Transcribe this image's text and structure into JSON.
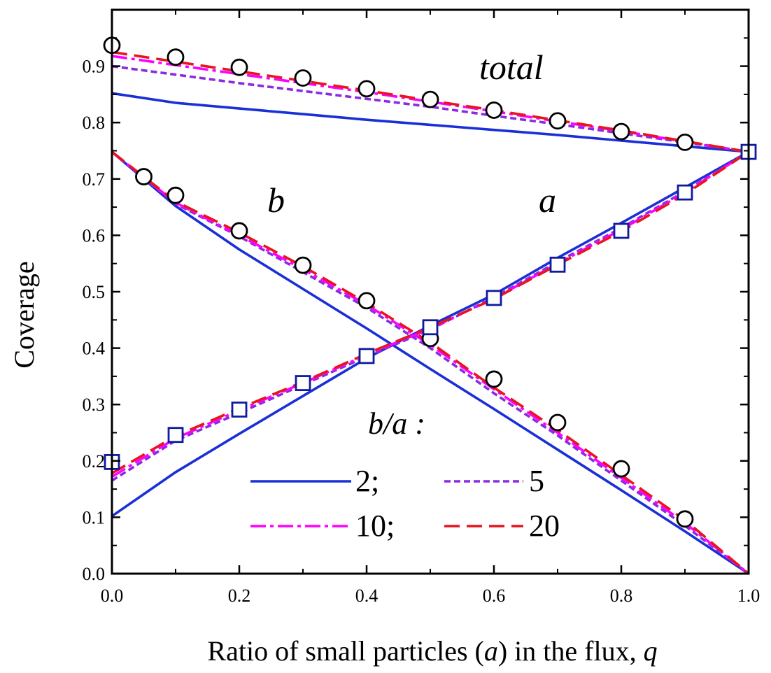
{
  "chart_data": {
    "type": "line",
    "xlabel": "Ratio of  small particles (a) in the flux, q",
    "xlabel_parts": [
      "Ratio of  small particles (",
      "a",
      ") in the flux, ",
      "q"
    ],
    "ylabel": "Coverage",
    "xlim": [
      0.0,
      1.0
    ],
    "ylim": [
      0.0,
      1.0
    ],
    "xticks": [
      "0.0",
      "0.2",
      "0.4",
      "0.6",
      "0.8",
      "1.0"
    ],
    "yticks": [
      "0.0",
      "0.1",
      "0.2",
      "0.3",
      "0.4",
      "0.5",
      "0.6",
      "0.7",
      "0.8",
      "0.9"
    ],
    "annotations": {
      "total": "total",
      "b": "b",
      "a": "a"
    },
    "legend": {
      "title": "b/a :",
      "placement": "bottom-center"
    },
    "series": [
      {
        "name": "2;",
        "color": "#1a2fd6",
        "dash": "solid",
        "group": "total",
        "x": [
          0,
          0.1,
          0.2,
          0.3,
          0.4,
          0.5,
          0.6,
          0.7,
          0.8,
          0.9,
          1.0
        ],
        "y": [
          0.852,
          0.835,
          0.825,
          0.815,
          0.805,
          0.796,
          0.787,
          0.778,
          0.768,
          0.758,
          0.748
        ]
      },
      {
        "name": "5",
        "color": "#8a2be2",
        "dash": "short-dash",
        "group": "total",
        "x": [
          0,
          0.1,
          0.2,
          0.3,
          0.4,
          0.5,
          0.6,
          0.7,
          0.8,
          0.9,
          1.0
        ],
        "y": [
          0.9,
          0.885,
          0.87,
          0.856,
          0.842,
          0.828,
          0.812,
          0.797,
          0.781,
          0.765,
          0.748
        ]
      },
      {
        "name": "10;",
        "color": "#ff00ff",
        "dash": "dash-dot",
        "group": "total",
        "x": [
          0,
          0.1,
          0.2,
          0.3,
          0.4,
          0.5,
          0.6,
          0.7,
          0.8,
          0.9,
          1.0
        ],
        "y": [
          0.918,
          0.902,
          0.886,
          0.87,
          0.854,
          0.837,
          0.82,
          0.802,
          0.785,
          0.766,
          0.748
        ]
      },
      {
        "name": "20",
        "color": "#e8141e",
        "dash": "long-dash",
        "group": "total",
        "x": [
          0,
          0.1,
          0.2,
          0.3,
          0.4,
          0.5,
          0.6,
          0.7,
          0.8,
          0.9,
          1.0
        ],
        "y": [
          0.925,
          0.908,
          0.891,
          0.874,
          0.857,
          0.839,
          0.822,
          0.804,
          0.786,
          0.767,
          0.748
        ]
      },
      {
        "name": "2;",
        "color": "#1a2fd6",
        "dash": "solid",
        "group": "b",
        "x": [
          0,
          0.1,
          0.2,
          0.3,
          0.4,
          0.5,
          0.6,
          0.7,
          0.8,
          0.9,
          1.0
        ],
        "y": [
          0.748,
          0.652,
          0.575,
          0.505,
          0.435,
          0.363,
          0.292,
          0.22,
          0.148,
          0.075,
          0.0
        ]
      },
      {
        "name": "5",
        "color": "#8a2be2",
        "dash": "short-dash",
        "group": "b",
        "x": [
          0,
          0.1,
          0.2,
          0.3,
          0.4,
          0.5,
          0.6,
          0.7,
          0.8,
          0.9,
          1.0
        ],
        "y": [
          0.748,
          0.656,
          0.598,
          0.535,
          0.472,
          0.4,
          0.32,
          0.245,
          0.165,
          0.085,
          0.0
        ]
      },
      {
        "name": "10;",
        "color": "#ff00ff",
        "dash": "dash-dot",
        "group": "b",
        "x": [
          0,
          0.1,
          0.2,
          0.3,
          0.4,
          0.5,
          0.6,
          0.7,
          0.8,
          0.9,
          1.0
        ],
        "y": [
          0.748,
          0.658,
          0.6,
          0.54,
          0.477,
          0.406,
          0.327,
          0.25,
          0.17,
          0.09,
          0.0
        ]
      },
      {
        "name": "20",
        "color": "#e8141e",
        "dash": "long-dash",
        "group": "b",
        "x": [
          0,
          0.1,
          0.2,
          0.3,
          0.4,
          0.5,
          0.6,
          0.7,
          0.8,
          0.9,
          1.0
        ],
        "y": [
          0.748,
          0.66,
          0.605,
          0.545,
          0.48,
          0.41,
          0.33,
          0.255,
          0.175,
          0.095,
          0.0
        ]
      },
      {
        "name": "2;",
        "color": "#1a2fd6",
        "dash": "solid",
        "group": "a",
        "x": [
          0,
          0.1,
          0.2,
          0.3,
          0.4,
          0.5,
          0.6,
          0.7,
          0.8,
          0.9,
          1.0
        ],
        "y": [
          0.102,
          0.18,
          0.248,
          0.315,
          0.382,
          0.44,
          0.495,
          0.56,
          0.622,
          0.685,
          0.748
        ]
      },
      {
        "name": "5",
        "color": "#8a2be2",
        "dash": "short-dash",
        "group": "a",
        "x": [
          0,
          0.1,
          0.2,
          0.3,
          0.4,
          0.5,
          0.6,
          0.7,
          0.8,
          0.9,
          1.0
        ],
        "y": [
          0.165,
          0.236,
          0.285,
          0.335,
          0.385,
          0.433,
          0.49,
          0.553,
          0.613,
          0.678,
          0.748
        ]
      },
      {
        "name": "10;",
        "color": "#ff00ff",
        "dash": "dash-dot",
        "group": "a",
        "x": [
          0,
          0.1,
          0.2,
          0.3,
          0.4,
          0.5,
          0.6,
          0.7,
          0.8,
          0.9,
          1.0
        ],
        "y": [
          0.172,
          0.24,
          0.29,
          0.338,
          0.388,
          0.435,
          0.488,
          0.55,
          0.61,
          0.676,
          0.748
        ]
      },
      {
        "name": "20",
        "color": "#e8141e",
        "dash": "long-dash",
        "group": "a",
        "x": [
          0,
          0.1,
          0.2,
          0.3,
          0.4,
          0.5,
          0.6,
          0.7,
          0.8,
          0.9,
          1.0
        ],
        "y": [
          0.178,
          0.244,
          0.293,
          0.34,
          0.39,
          0.437,
          0.487,
          0.548,
          0.607,
          0.673,
          0.748
        ]
      },
      {
        "marker": "circle",
        "group": "total",
        "x": [
          0.0,
          0.1,
          0.2,
          0.3,
          0.4,
          0.5,
          0.6,
          0.7,
          0.8,
          0.9
        ],
        "y": [
          0.937,
          0.916,
          0.898,
          0.879,
          0.86,
          0.841,
          0.822,
          0.803,
          0.784,
          0.765
        ]
      },
      {
        "marker": "circle",
        "group": "b",
        "x": [
          0.05,
          0.1,
          0.2,
          0.3,
          0.4,
          0.5,
          0.6,
          0.7,
          0.8,
          0.9
        ],
        "y": [
          0.704,
          0.671,
          0.608,
          0.547,
          0.484,
          0.417,
          0.345,
          0.268,
          0.186,
          0.097
        ]
      },
      {
        "marker": "square",
        "group": "a",
        "x": [
          0.0,
          0.1,
          0.2,
          0.3,
          0.4,
          0.5,
          0.6,
          0.7,
          0.8,
          0.9,
          1.0
        ],
        "y": [
          0.198,
          0.246,
          0.291,
          0.338,
          0.386,
          0.437,
          0.489,
          0.548,
          0.608,
          0.676,
          0.748
        ]
      }
    ]
  }
}
